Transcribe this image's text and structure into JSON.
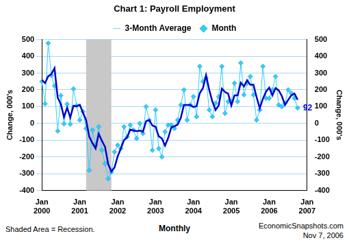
{
  "chart_data": {
    "type": "line",
    "title": "Chart 1: Payroll Employment",
    "y_label": "Change, 000's",
    "y2_label": "Change, 000's",
    "x_label": "Monthly",
    "note": "Shaded Area = Recession.",
    "source": "EconomicSnapshots.com",
    "date": "Nov 7, 2006",
    "legend": "top",
    "grid": true,
    "ylim": [
      -400,
      500
    ],
    "yticks": [
      -400,
      -300,
      -200,
      -100,
      0,
      100,
      200,
      300,
      400,
      500
    ],
    "y2lim": [
      -400,
      500
    ],
    "y2ticks": [
      -400,
      -300,
      -200,
      -100,
      0,
      100,
      200,
      300,
      400,
      500
    ],
    "recession": {
      "start": 14,
      "end": 22
    },
    "annotations": [
      {
        "text": "92",
        "x": 81,
        "y": 92
      }
    ],
    "categories": [
      "Jan 2000",
      null,
      null,
      null,
      null,
      null,
      null,
      null,
      null,
      null,
      null,
      null,
      "Jan 2001",
      null,
      null,
      null,
      null,
      null,
      null,
      null,
      null,
      null,
      null,
      null,
      "Jan 2002",
      null,
      null,
      null,
      null,
      null,
      null,
      null,
      null,
      null,
      null,
      null,
      "Jan 2003",
      null,
      null,
      null,
      null,
      null,
      null,
      null,
      null,
      null,
      null,
      null,
      "Jan 2004",
      null,
      null,
      null,
      null,
      null,
      null,
      null,
      null,
      null,
      null,
      null,
      "Jan 2005",
      null,
      null,
      null,
      null,
      null,
      null,
      null,
      null,
      null,
      null,
      null,
      "Jan 2006",
      null,
      null,
      null,
      null,
      null,
      null,
      null,
      null,
      null,
      null,
      null,
      "Jan 2007"
    ],
    "series": [
      {
        "name": "Month",
        "color": "#33ccff",
        "marker": "diamond",
        "line_style": "solid",
        "values": [
          249,
          117,
          478,
          286,
          223,
          -46,
          166,
          -3,
          115,
          -5,
          206,
          106,
          20,
          70,
          -30,
          -280,
          -40,
          -130,
          -20,
          -160,
          -240,
          -330,
          -290,
          -170,
          -130,
          -150,
          -20,
          -80,
          -10,
          -40,
          -90,
          0,
          -60,
          100,
          20,
          -160,
          80,
          -150,
          -200,
          -50,
          -10,
          -10,
          -30,
          20,
          110,
          200,
          20,
          110,
          160,
          40,
          340,
          250,
          270,
          80,
          40,
          120,
          160,
          340,
          60,
          130,
          130,
          240,
          130,
          360,
          170,
          240,
          280,
          170,
          20,
          80,
          340,
          150,
          150,
          200,
          280,
          110,
          100,
          120,
          200,
          180,
          150,
          92,
          null,
          null,
          null
        ]
      },
      {
        "name": "3-Month Average",
        "color": "#0000cc",
        "marker": "none",
        "line_style": "solid",
        "values": [
          260,
          240,
          281,
          294,
          329,
          154,
          114,
          39,
          93,
          36,
          105,
          102,
          111,
          65,
          20,
          -80,
          -117,
          -150,
          -63,
          -103,
          -140,
          -243,
          -287,
          -263,
          -197,
          -150,
          -100,
          -83,
          -37,
          -43,
          -47,
          -43,
          -50,
          13,
          20,
          -13,
          -20,
          -77,
          -90,
          -133,
          -87,
          -23,
          -17,
          -7,
          33,
          110,
          110,
          110,
          97,
          103,
          180,
          210,
          287,
          200,
          130,
          80,
          107,
          207,
          187,
          177,
          107,
          167,
          167,
          243,
          220,
          257,
          230,
          230,
          157,
          90,
          147,
          190,
          213,
          167,
          210,
          197,
          163,
          110,
          140,
          167,
          177,
          141,
          null,
          null,
          null
        ]
      }
    ]
  }
}
